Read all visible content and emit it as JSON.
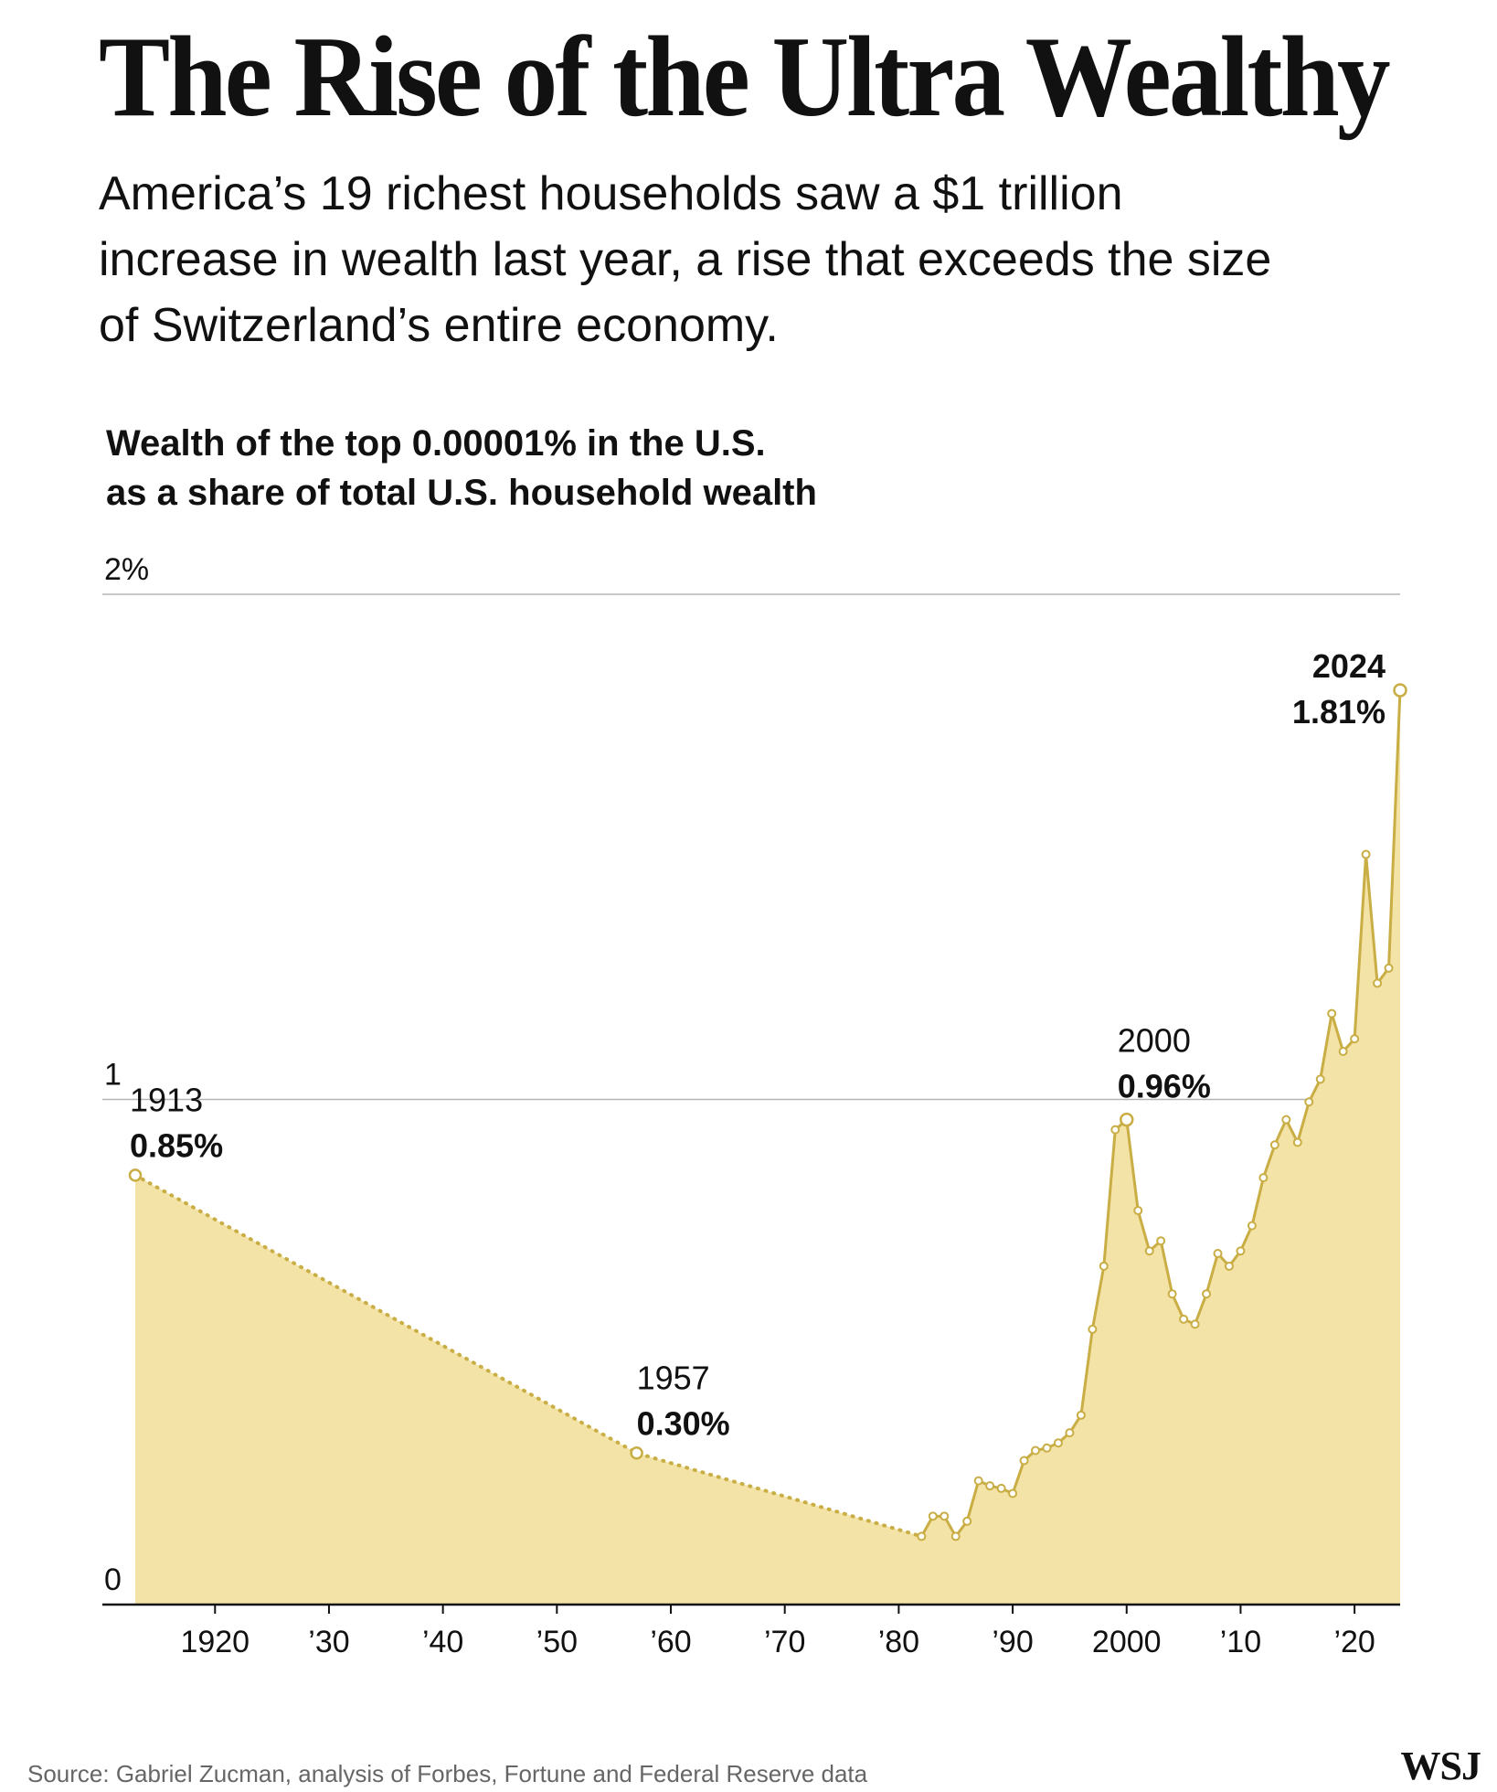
{
  "headline": "The Rise of the Ultra Wealthy",
  "dek": "America’s 19 richest households saw a $1 trillion increase in wealth last year, a rise that exceeds the size of Switzerland’s entire economy.",
  "chart_data": {
    "type": "area",
    "title": "Wealth of the top 0.00001% in the U.S. as a share of total U.S. household wealth",
    "title_lines": [
      "Wealth of the top 0.00001% in the U.S.",
      "as a share of total U.S. household wealth"
    ],
    "xlabel": "",
    "ylabel": "",
    "xlim": [
      1913,
      2024
    ],
    "ylim": [
      0,
      2
    ],
    "y_ticks": [
      {
        "value": 2,
        "label": "2%"
      },
      {
        "value": 1,
        "label": "1"
      },
      {
        "value": 0,
        "label": "0"
      }
    ],
    "x_ticks": [
      {
        "value": 1920,
        "label": "1920"
      },
      {
        "value": 1930,
        "label": "’30"
      },
      {
        "value": 1940,
        "label": "’40"
      },
      {
        "value": 1950,
        "label": "’50"
      },
      {
        "value": 1960,
        "label": "’60"
      },
      {
        "value": 1970,
        "label": "’70"
      },
      {
        "value": 1980,
        "label": "’80"
      },
      {
        "value": 1990,
        "label": "’90"
      },
      {
        "value": 2000,
        "label": "2000"
      },
      {
        "value": 2010,
        "label": "’10"
      },
      {
        "value": 2020,
        "label": "’20"
      }
    ],
    "grid": true,
    "color": "#c9ad45",
    "fill_color": "#f3e3a6",
    "interpolated_points": [
      {
        "x": 1913,
        "y": 0.85
      },
      {
        "x": 1957,
        "y": 0.3
      },
      {
        "x": 1982,
        "y": 0.135
      }
    ],
    "annual_points": [
      {
        "x": 1982,
        "y": 0.135
      },
      {
        "x": 1983,
        "y": 0.175
      },
      {
        "x": 1984,
        "y": 0.175
      },
      {
        "x": 1985,
        "y": 0.135
      },
      {
        "x": 1986,
        "y": 0.165
      },
      {
        "x": 1987,
        "y": 0.245
      },
      {
        "x": 1988,
        "y": 0.235
      },
      {
        "x": 1989,
        "y": 0.23
      },
      {
        "x": 1990,
        "y": 0.22
      },
      {
        "x": 1991,
        "y": 0.285
      },
      {
        "x": 1992,
        "y": 0.305
      },
      {
        "x": 1993,
        "y": 0.31
      },
      {
        "x": 1994,
        "y": 0.32
      },
      {
        "x": 1995,
        "y": 0.34
      },
      {
        "x": 1996,
        "y": 0.375
      },
      {
        "x": 1997,
        "y": 0.545
      },
      {
        "x": 1998,
        "y": 0.67
      },
      {
        "x": 1999,
        "y": 0.94
      },
      {
        "x": 2000,
        "y": 0.96
      },
      {
        "x": 2001,
        "y": 0.78
      },
      {
        "x": 2002,
        "y": 0.7
      },
      {
        "x": 2003,
        "y": 0.72
      },
      {
        "x": 2004,
        "y": 0.615
      },
      {
        "x": 2005,
        "y": 0.565
      },
      {
        "x": 2006,
        "y": 0.555
      },
      {
        "x": 2007,
        "y": 0.615
      },
      {
        "x": 2008,
        "y": 0.695
      },
      {
        "x": 2009,
        "y": 0.67
      },
      {
        "x": 2010,
        "y": 0.7
      },
      {
        "x": 2011,
        "y": 0.75
      },
      {
        "x": 2012,
        "y": 0.845
      },
      {
        "x": 2013,
        "y": 0.91
      },
      {
        "x": 2014,
        "y": 0.96
      },
      {
        "x": 2015,
        "y": 0.915
      },
      {
        "x": 2016,
        "y": 0.995
      },
      {
        "x": 2017,
        "y": 1.04
      },
      {
        "x": 2018,
        "y": 1.17
      },
      {
        "x": 2019,
        "y": 1.095
      },
      {
        "x": 2020,
        "y": 1.12
      },
      {
        "x": 2021,
        "y": 1.485
      },
      {
        "x": 2022,
        "y": 1.23
      },
      {
        "x": 2023,
        "y": 1.26
      },
      {
        "x": 2024,
        "y": 1.81
      }
    ],
    "annotations": [
      {
        "year": "1913",
        "value": "0.85%",
        "x": 1913,
        "y": 0.85
      },
      {
        "year": "1957",
        "value": "0.30%",
        "x": 1957,
        "y": 0.3
      },
      {
        "year": "2000",
        "value": "0.96%",
        "x": 2000,
        "y": 0.96
      },
      {
        "year": "2024",
        "value": "1.81%",
        "x": 2024,
        "y": 1.81
      }
    ]
  },
  "source": "Source: Gabriel Zucman, analysis of Forbes, Fortune and Federal Reserve data",
  "logo_text": "WSJ"
}
